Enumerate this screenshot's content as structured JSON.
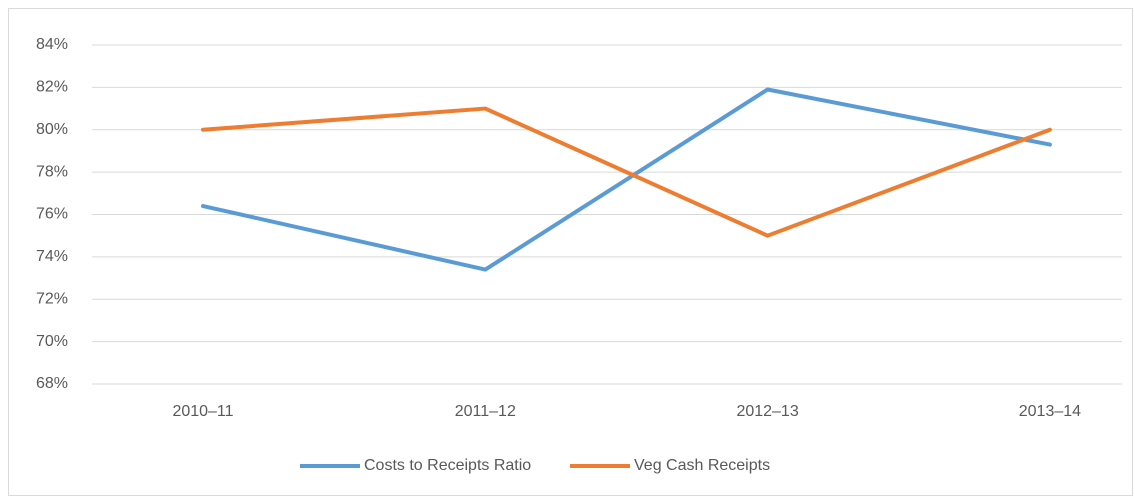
{
  "chart_data": {
    "type": "line",
    "categories": [
      "2010–11",
      "2011–12",
      "2012–13",
      "2013–14"
    ],
    "series": [
      {
        "name": "Costs to Receipts Ratio",
        "color": "#5b9bd5",
        "values": [
          76.4,
          73.4,
          81.9,
          79.3
        ]
      },
      {
        "name": "Veg Cash Receipts",
        "color": "#ed7d31",
        "values": [
          80,
          81,
          75,
          80
        ]
      }
    ],
    "ylim": [
      68,
      84
    ],
    "yticks": [
      {
        "value": 68,
        "label": "68%"
      },
      {
        "value": 70,
        "label": "70%"
      },
      {
        "value": 72,
        "label": "72%"
      },
      {
        "value": 74,
        "label": "74%"
      },
      {
        "value": 76,
        "label": "76%"
      },
      {
        "value": 78,
        "label": "78%"
      },
      {
        "value": 80,
        "label": "80%"
      },
      {
        "value": 82,
        "label": "82%"
      },
      {
        "value": 84,
        "label": "84%"
      }
    ],
    "grid": true,
    "legend": "bottom"
  }
}
